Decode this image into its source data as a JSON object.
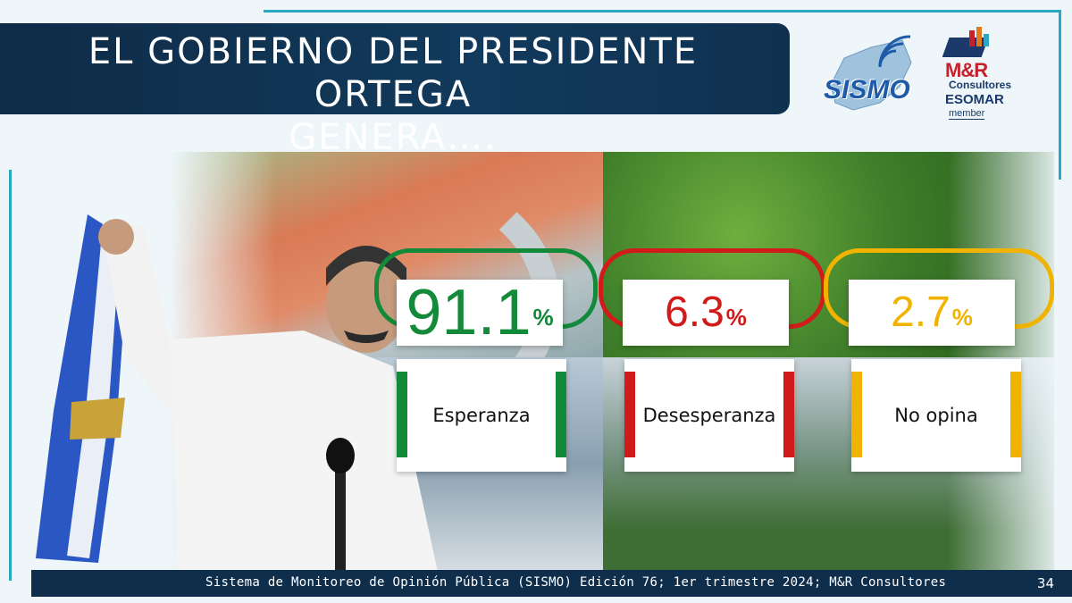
{
  "title": {
    "line1": "EL GOBIERNO DEL PRESIDENTE ORTEGA",
    "line2": "GENERA…."
  },
  "logos": {
    "sismo": "SISMO",
    "mr": "M&R",
    "mr_sub": "Consultores",
    "esomar": "ESOMAR",
    "member": "member"
  },
  "results": [
    {
      "value": "91.1",
      "symbol": "%",
      "label": "Esperanza",
      "color": "#138a3a"
    },
    {
      "value": "6.3",
      "symbol": "%",
      "label": "Desesperanza",
      "color": "#d11a1a"
    },
    {
      "value": "2.7",
      "symbol": "%",
      "label": "No opina",
      "color": "#f0b400"
    }
  ],
  "footer": {
    "source": "Sistema de Monitoreo de Opinión Pública (SISMO) Edición 76; 1er trimestre 2024; M&R Consultores",
    "page": "34"
  }
}
